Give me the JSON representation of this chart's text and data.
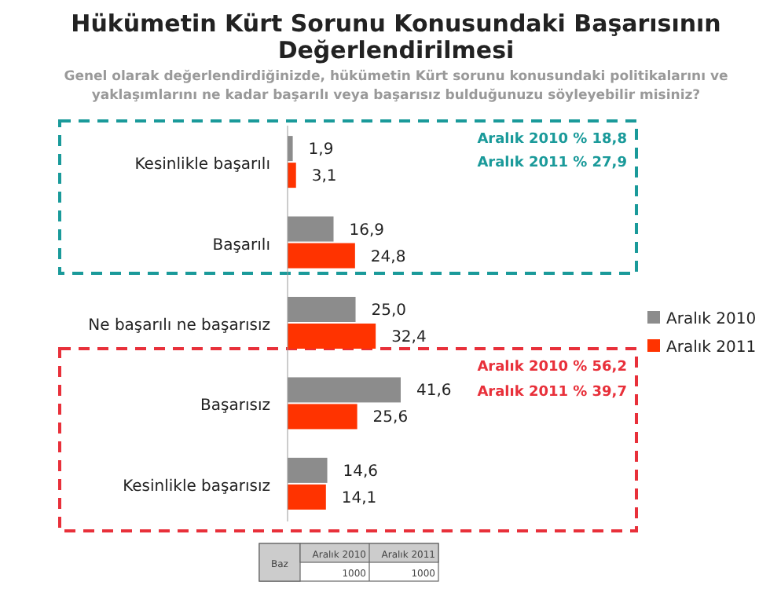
{
  "chart_data": {
    "type": "bar",
    "orientation": "horizontal",
    "title": "Hükümetin Kürt Sorunu Konusundaki Başarısının Değerlendirilmesi",
    "subtitle": "Genel olarak değerlendirdiğinizde, hükümetin Kürt sorunu konusundaki politikalarını ve yaklaşımlarını ne kadar başarılı veya başarısız bulduğunuzu söyleyebilir misiniz?",
    "categories": [
      "Kesinlikle başarılı",
      "Başarılı",
      "Ne başarılı ne başarısız",
      "Başarısız",
      "Kesinlikle başarısız"
    ],
    "series": [
      {
        "name": "Aralık 2010",
        "color": "#8c8c8c",
        "values": [
          1.9,
          16.9,
          25.0,
          41.6,
          14.6
        ],
        "value_labels": [
          "1,9",
          "16,9",
          "25,0",
          "41,6",
          "14,6"
        ]
      },
      {
        "name": "Aralık 2011",
        "color": "#ff3300",
        "values": [
          3.1,
          24.8,
          32.4,
          25.6,
          14.1
        ],
        "value_labels": [
          "3,1",
          "24,8",
          "32,4",
          "25,6",
          "14,1"
        ]
      }
    ],
    "legend": "right",
    "annotations": [
      "Aralık 2010 % 18,8",
      "Aralık 2011 % 27,9",
      "Aralık 2010 % 56,2",
      "Aralık 2011 % 39,7",
      "Baz",
      "Aralık 2010",
      "Aralık 2011",
      "1000",
      "1000"
    ]
  }
}
